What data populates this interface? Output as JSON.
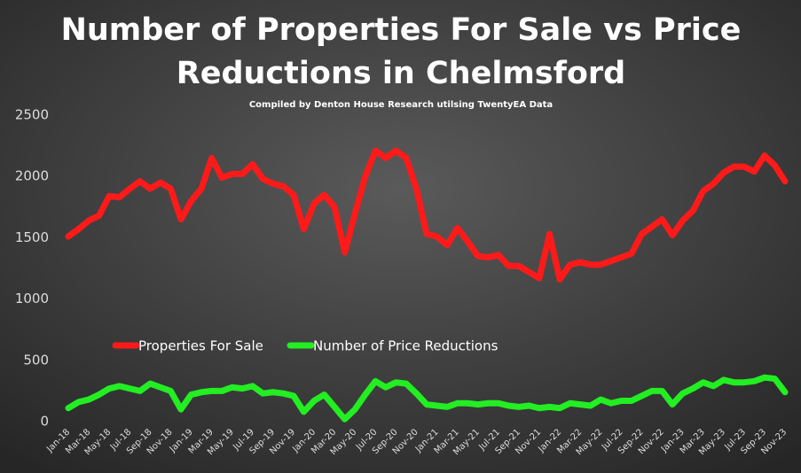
{
  "chart_data": {
    "type": "line",
    "title": "Number of Properties For Sale vs Price",
    "title_line2": "Reductions in Chelmsford",
    "subtitle": "Compiled by Denton House Research utilsing TwentyEA Data",
    "categories": [
      "Jan-18",
      null,
      "Mar-18",
      null,
      "May-18",
      null,
      "Jul-18",
      null,
      "Sep-18",
      null,
      "Nov-18",
      null,
      "Jan-19",
      null,
      "Mar-19",
      null,
      "May-19",
      null,
      "Jul-19",
      null,
      "Sep-19",
      null,
      "Nov-19",
      null,
      "Jan-20",
      null,
      "Mar-20",
      null,
      "May-20",
      null,
      "Jul-20",
      null,
      "Sep-20",
      null,
      "Nov-20",
      null,
      "Jan-21",
      null,
      "Mar-21",
      null,
      "May-21",
      null,
      "Jul-21",
      null,
      "Sep-21",
      null,
      "Nov-21",
      null,
      "Jan-22",
      null,
      "Mar-22",
      null,
      "May-22",
      null,
      "Jul-22",
      null,
      "Sep-22",
      null,
      "Nov-22",
      null,
      "Jan-23",
      null,
      "Mar-23",
      null,
      "May-23",
      null,
      "Jul-23",
      null,
      "Sep-23",
      null,
      "Nov-23"
    ],
    "series": [
      {
        "name": "Properties For Sale",
        "color": "#ff1a1a",
        "values": [
          1510,
          1570,
          1640,
          1680,
          1840,
          1830,
          1900,
          1960,
          1900,
          1950,
          1900,
          1650,
          1800,
          1900,
          2150,
          1990,
          2020,
          2020,
          2100,
          1980,
          1940,
          1920,
          1850,
          1570,
          1780,
          1850,
          1750,
          1380,
          1700,
          2000,
          2210,
          2150,
          2210,
          2150,
          1900,
          1530,
          1510,
          1440,
          1580,
          1470,
          1350,
          1340,
          1360,
          1270,
          1270,
          1220,
          1170,
          1530,
          1160,
          1280,
          1300,
          1280,
          1280,
          1310,
          1340,
          1370,
          1530,
          1590,
          1650,
          1520,
          1640,
          1720,
          1880,
          1940,
          2030,
          2080,
          2080,
          2040,
          2170,
          2090,
          1960
        ]
      },
      {
        "name": "Number of Price Reductions",
        "color": "#22ee22",
        "values": [
          110,
          160,
          180,
          220,
          270,
          290,
          270,
          250,
          310,
          280,
          250,
          100,
          220,
          240,
          250,
          250,
          280,
          270,
          290,
          230,
          240,
          230,
          210,
          80,
          170,
          220,
          120,
          20,
          100,
          220,
          330,
          280,
          320,
          310,
          230,
          140,
          130,
          120,
          150,
          150,
          140,
          150,
          150,
          130,
          120,
          130,
          110,
          120,
          110,
          150,
          140,
          130,
          180,
          150,
          170,
          170,
          210,
          250,
          250,
          140,
          230,
          270,
          320,
          290,
          340,
          320,
          320,
          330,
          360,
          350,
          240
        ]
      }
    ],
    "ylim": [
      0,
      2500
    ],
    "yticks": [
      0,
      500,
      1000,
      1500,
      2000,
      2500
    ]
  }
}
